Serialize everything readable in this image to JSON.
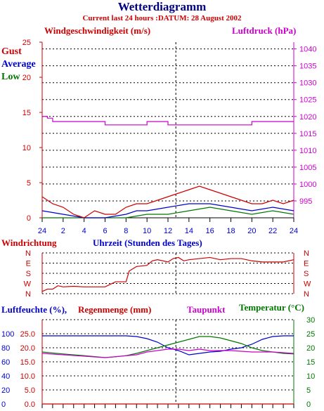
{
  "header": {
    "title": "Wetterdiagramm",
    "subtitle": "Current last 24 hours :DATUM: 28 August 2002"
  },
  "colors": {
    "red": "#cc0000",
    "blue": "#0000cc",
    "green": "#007700",
    "magenta": "#cc00cc",
    "grid": "#000000"
  },
  "chart_data": [
    {
      "type": "line",
      "id": "wind",
      "ylabel_left": "Windgeschwindigkeit (m/s)",
      "ylabel_right": "Luftdruck (hPa)",
      "legend": [
        "Gust",
        "Average",
        "Low"
      ],
      "legend_placement": "top-left",
      "ylim_left": [
        0,
        25
      ],
      "yticks_left": [
        "0",
        "5",
        "10",
        "15",
        "20",
        "25"
      ],
      "ylim_right": [
        990,
        1042
      ],
      "yticks_right": [
        "995",
        "1000",
        "1005",
        "1010",
        "1015",
        "1020",
        "1025",
        "1030",
        "1035",
        "1040"
      ],
      "xlabel": "Uhrzeit (Stunden des Tages)",
      "xticks": [
        "24",
        "2",
        "4",
        "6",
        "8",
        "10",
        "12",
        "14",
        "16",
        "18",
        "20",
        "22",
        "24"
      ],
      "grid": true,
      "series": [
        {
          "name": "Luftdruck",
          "hours": [
            0,
            0.5,
            1,
            6,
            10,
            12,
            20,
            24
          ],
          "values": [
            1020,
            1019.5,
            1018.5,
            1017.5,
            1018.5,
            1017.5,
            1018.5,
            1018.5
          ]
        },
        {
          "name": "Gust",
          "hours": [
            0,
            1,
            2,
            3,
            4,
            5,
            6,
            7,
            8,
            9,
            10,
            11,
            12,
            13,
            14,
            15,
            16,
            17,
            18,
            19,
            20,
            21,
            22,
            23,
            24
          ],
          "values": [
            3,
            2,
            1.5,
            0.5,
            0,
            1,
            0.5,
            0.5,
            1.5,
            2,
            2,
            2.5,
            3,
            3.5,
            4,
            4.5,
            4,
            3.5,
            3,
            2.5,
            2,
            2,
            2.5,
            2,
            2.5
          ]
        },
        {
          "name": "Average",
          "hours": [
            0,
            2,
            4,
            6,
            8,
            9,
            10,
            12,
            14,
            16,
            18,
            20,
            22,
            24
          ],
          "values": [
            1,
            0.5,
            0,
            0,
            0.5,
            1,
            1,
            1.5,
            2,
            2,
            1.5,
            1,
            1.5,
            1
          ]
        },
        {
          "name": "Low",
          "hours": [
            0,
            8,
            10,
            12,
            14,
            16,
            18,
            20,
            22,
            24
          ],
          "values": [
            0,
            0,
            0.5,
            0.5,
            1,
            1.5,
            1,
            0.5,
            1,
            0.5
          ]
        }
      ]
    },
    {
      "type": "line",
      "id": "direction",
      "ylabel": "Windrichtung",
      "yticks": [
        "N",
        "W",
        "S",
        "E",
        "N"
      ],
      "ylim": [
        0,
        360
      ],
      "series": [
        {
          "name": "Windrichtung",
          "hours": [
            0,
            0.5,
            1,
            1.5,
            2,
            3,
            4,
            5,
            6,
            7,
            8,
            8.3,
            9,
            10,
            10.5,
            11,
            12,
            12.5,
            13,
            13.5,
            14,
            15,
            16,
            17,
            18,
            19,
            20,
            21,
            22,
            23,
            24
          ],
          "values": [
            20,
            40,
            40,
            70,
            60,
            65,
            60,
            60,
            60,
            105,
            105,
            200,
            240,
            250,
            290,
            300,
            280,
            310,
            320,
            290,
            300,
            310,
            320,
            300,
            310,
            310,
            290,
            280,
            280,
            280,
            300
          ]
        }
      ]
    },
    {
      "type": "line",
      "id": "humidity",
      "ylabel_left": "Luftfeuchte (%),",
      "ylabel_left2": "Regenmenge (mm)",
      "ylabel_right": "Temperatur (°C)",
      "legend_extra": "Taupunkt",
      "ylim_left": [
        0,
        120
      ],
      "yticks_left": [
        "0",
        "20",
        "40",
        "60",
        "80",
        "100"
      ],
      "ylim_left2": [
        0,
        30
      ],
      "yticks_left2": [
        "0.0",
        "5.0",
        "10.0",
        "15.0",
        "20.0",
        "25.0"
      ],
      "ylim_right": [
        0,
        30
      ],
      "yticks_right": [
        "0",
        "5",
        "10",
        "15",
        "20",
        "25",
        "30"
      ],
      "series": [
        {
          "name": "Luftfeuchte",
          "hours": [
            0,
            2,
            4,
            6,
            8,
            9,
            10,
            11,
            12,
            13,
            14,
            15,
            16,
            17,
            18,
            19,
            20,
            21,
            22,
            23,
            24
          ],
          "values": [
            97,
            97,
            97,
            97,
            97,
            96,
            93,
            88,
            80,
            76,
            70,
            72,
            74,
            75,
            78,
            80,
            85,
            92,
            96,
            97,
            97
          ]
        },
        {
          "name": "Temperatur",
          "hours": [
            0,
            2,
            4,
            6,
            7,
            8,
            9,
            10,
            11,
            12,
            13,
            14,
            15,
            16,
            17,
            18,
            19,
            20,
            21,
            22,
            23,
            24
          ],
          "values": [
            18.5,
            17.8,
            17.2,
            16.5,
            16.8,
            17.2,
            18,
            19,
            20,
            21,
            22,
            23,
            24,
            24,
            23.5,
            22.5,
            21.5,
            20,
            19,
            18.5,
            18,
            17.8
          ]
        },
        {
          "name": "Taupunkt",
          "hours": [
            0,
            6,
            9,
            10,
            11,
            12,
            13,
            14,
            15,
            16,
            18,
            20,
            22,
            24
          ],
          "values": [
            18,
            16.5,
            17.5,
            18.5,
            19,
            19.5,
            19.5,
            19,
            19.5,
            19,
            19,
            18.5,
            18.5,
            18
          ]
        },
        {
          "name": "Regenmenge",
          "hours": [
            0,
            24
          ],
          "values": [
            0,
            0
          ]
        }
      ]
    }
  ]
}
